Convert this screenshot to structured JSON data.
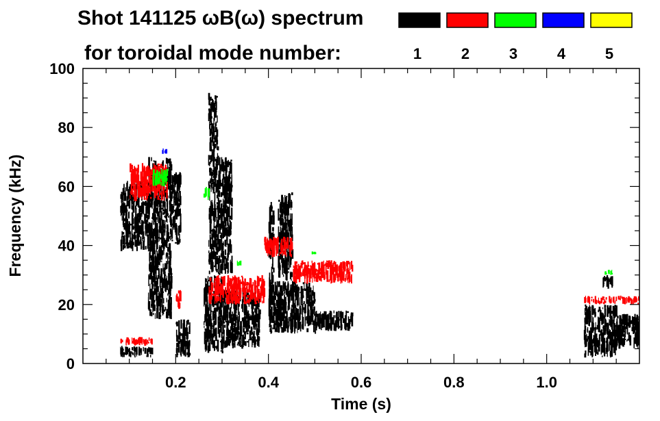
{
  "chart_data": {
    "type": "heatmap",
    "title": "Shot 141125 ωB(ω) spectrum",
    "subtitle": "for toroidal mode number:",
    "xlabel": "Time (s)",
    "ylabel": "Frequency (kHz)",
    "xlim": [
      0.0,
      1.2
    ],
    "ylim": [
      0,
      100
    ],
    "xticks": [
      0.2,
      0.4,
      0.6,
      0.8,
      1.0
    ],
    "xtick_labels": [
      "0.2",
      "0.4",
      "0.6",
      "0.8",
      "1.0"
    ],
    "yticks": [
      0,
      20,
      40,
      60,
      80,
      100
    ],
    "ytick_labels": [
      "0",
      "20",
      "40",
      "60",
      "80",
      "100"
    ],
    "grid": false,
    "legend_position": "top",
    "legend": [
      {
        "label": "1",
        "color": "#000000"
      },
      {
        "label": "2",
        "color": "#ff0000"
      },
      {
        "label": "3",
        "color": "#00ff00"
      },
      {
        "label": "4",
        "color": "#0000ff"
      },
      {
        "label": "5",
        "color": "#ffff00"
      }
    ],
    "series": [
      {
        "mode": "1",
        "color": "#000000",
        "regions": [
          {
            "t": [
              0.08,
              0.14
            ],
            "f": [
              38,
              62
            ]
          },
          {
            "t": [
              0.08,
              0.15
            ],
            "f": [
              2,
              6
            ]
          },
          {
            "t": [
              0.14,
              0.19
            ],
            "f": [
              15,
              70
            ]
          },
          {
            "t": [
              0.19,
              0.21
            ],
            "f": [
              40,
              65
            ]
          },
          {
            "t": [
              0.2,
              0.23
            ],
            "f": [
              2,
              15
            ]
          },
          {
            "t": [
              0.26,
              0.3
            ],
            "f": [
              3,
              30
            ]
          },
          {
            "t": [
              0.27,
              0.29
            ],
            "f": [
              30,
              92
            ]
          },
          {
            "t": [
              0.29,
              0.32
            ],
            "f": [
              30,
              70
            ]
          },
          {
            "t": [
              0.3,
              0.38
            ],
            "f": [
              5,
              25
            ]
          },
          {
            "t": [
              0.4,
              0.41
            ],
            "f": [
              20,
              55
            ]
          },
          {
            "t": [
              0.4,
              0.5
            ],
            "f": [
              10,
              28
            ]
          },
          {
            "t": [
              0.42,
              0.45
            ],
            "f": [
              28,
              58
            ]
          },
          {
            "t": [
              0.5,
              0.58
            ],
            "f": [
              11,
              18
            ]
          },
          {
            "t": [
              1.08,
              1.15
            ],
            "f": [
              2,
              20
            ]
          },
          {
            "t": [
              1.15,
              1.2
            ],
            "f": [
              5,
              17
            ]
          },
          {
            "t": [
              1.12,
              1.14
            ],
            "f": [
              25,
              30
            ]
          }
        ]
      },
      {
        "mode": "2",
        "color": "#ff0000",
        "regions": [
          {
            "t": [
              0.1,
              0.18
            ],
            "f": [
              55,
              68
            ]
          },
          {
            "t": [
              0.2,
              0.21
            ],
            "f": [
              18,
              25
            ]
          },
          {
            "t": [
              0.27,
              0.39
            ],
            "f": [
              20,
              30
            ]
          },
          {
            "t": [
              0.39,
              0.45
            ],
            "f": [
              36,
              43
            ]
          },
          {
            "t": [
              0.45,
              0.58
            ],
            "f": [
              27,
              35
            ]
          },
          {
            "t": [
              1.08,
              1.2
            ],
            "f": [
              20,
              23
            ]
          },
          {
            "t": [
              0.08,
              0.15
            ],
            "f": [
              6,
              9
            ]
          }
        ]
      },
      {
        "mode": "3",
        "color": "#00ff00",
        "regions": [
          {
            "t": [
              0.15,
              0.18
            ],
            "f": [
              60,
              66
            ]
          },
          {
            "t": [
              0.26,
              0.27
            ],
            "f": [
              55,
              60
            ]
          },
          {
            "t": [
              0.33,
              0.34
            ],
            "f": [
              33,
              35
            ]
          },
          {
            "t": [
              0.49,
              0.5
            ],
            "f": [
              37,
              38
            ]
          },
          {
            "t": [
              1.12,
              1.14
            ],
            "f": [
              30,
              32
            ]
          }
        ]
      },
      {
        "mode": "4",
        "color": "#0000ff",
        "regions": [
          {
            "t": [
              0.17,
              0.18
            ],
            "f": [
              71,
              73
            ]
          }
        ]
      },
      {
        "mode": "5",
        "color": "#ffff00",
        "regions": []
      }
    ]
  }
}
